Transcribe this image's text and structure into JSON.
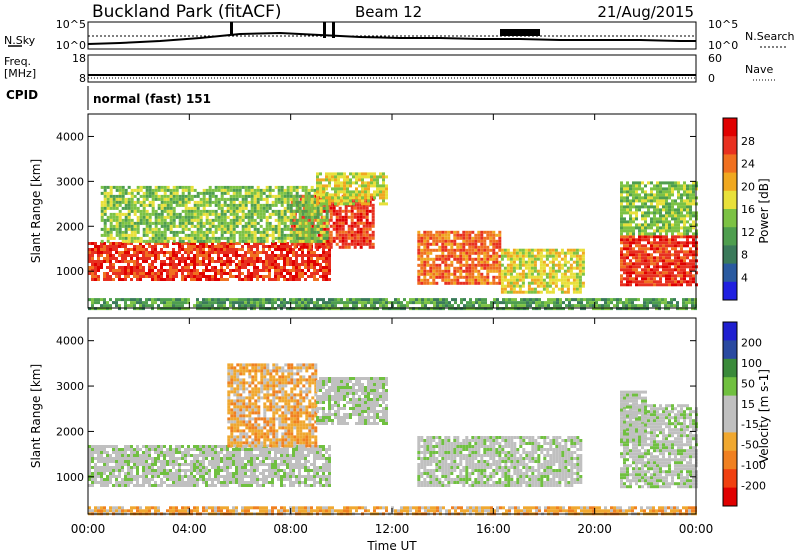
{
  "header": {
    "title": "Buckland Park (fitACF)",
    "beam": "Beam 12",
    "date": "21/Aug/2015"
  },
  "noise_panel": {
    "left_label": "N.Sky",
    "right_label": "N.Search",
    "left_ticks": [
      "10^5",
      "10^0"
    ],
    "right_ticks": [
      "10^5",
      "10^0"
    ]
  },
  "freq_panel": {
    "left_label_1": "Freq.",
    "left_label_2": "[MHz]",
    "right_label": "Nave",
    "left_ticks": [
      "18",
      "8"
    ],
    "right_ticks": [
      "60",
      "0"
    ]
  },
  "cpid_panel": {
    "label": "CPID",
    "text": "normal (fast) 151"
  },
  "x_axis": {
    "label": "Time UT",
    "ticks": [
      "00:00",
      "04:00",
      "08:00",
      "12:00",
      "16:00",
      "20:00",
      "00:00"
    ]
  },
  "colors": {
    "power": [
      "#2020e0",
      "#2a5aa0",
      "#3a7a5a",
      "#4e9e4e",
      "#7cc244",
      "#e8e03a",
      "#f0a820",
      "#f07020",
      "#e83020",
      "#e00000"
    ],
    "velocity": [
      "#e00000",
      "#f04010",
      "#f08020",
      "#f0a830",
      "#c0c0c0",
      "#c0c0c0",
      "#70c040",
      "#3a8a3a",
      "#2a4aa0",
      "#2020d0"
    ]
  },
  "chart_data": [
    {
      "type": "heatmap",
      "title": "",
      "xlabel": "Time UT",
      "ylabel": "Slant Range [km]",
      "xlim": [
        "00:00",
        "24:00"
      ],
      "ylim": [
        180,
        4500
      ],
      "y_ticks": [
        1000,
        2000,
        3000,
        4000
      ],
      "colorbar": {
        "label": "Power [dB]",
        "ticks": [
          4,
          8,
          12,
          16,
          20,
          24,
          28
        ]
      },
      "echo_regions": [
        {
          "t0": 0.0,
          "t1": 9.5,
          "r0": 800,
          "r1": 1650,
          "value_dB": 28
        },
        {
          "t0": 8.0,
          "t1": 11.3,
          "r0": 1500,
          "r1": 2700,
          "value_dB": 26
        },
        {
          "t0": 0.5,
          "t1": 9.5,
          "r0": 1650,
          "r1": 2900,
          "value_dB": 14
        },
        {
          "t0": 9.0,
          "t1": 11.8,
          "r0": 2500,
          "r1": 3200,
          "value_dB": 16
        },
        {
          "t0": 13.0,
          "t1": 16.2,
          "r0": 700,
          "r1": 1900,
          "value_dB": 24
        },
        {
          "t0": 16.3,
          "t1": 19.5,
          "r0": 500,
          "r1": 1500,
          "value_dB": 16
        },
        {
          "t0": 21.0,
          "t1": 24.0,
          "r0": 700,
          "r1": 1800,
          "value_dB": 28
        },
        {
          "t0": 21.0,
          "t1": 24.0,
          "r0": 1800,
          "r1": 3000,
          "value_dB": 14
        },
        {
          "t0": 0.0,
          "t1": 24.0,
          "r0": 180,
          "r1": 400,
          "value_dB": 10
        }
      ]
    },
    {
      "type": "heatmap",
      "title": "",
      "xlabel": "Time UT",
      "ylabel": "Slant Range [km]",
      "xlim": [
        "00:00",
        "24:00"
      ],
      "ylim": [
        180,
        4500
      ],
      "y_ticks": [
        1000,
        2000,
        3000,
        4000
      ],
      "colorbar": {
        "label": "Velocity [m s-1]",
        "ticks": [
          -200,
          -100,
          -50,
          -15,
          15,
          50,
          100,
          200
        ]
      },
      "echo_regions": [
        {
          "t0": 0.0,
          "t1": 9.5,
          "r0": 800,
          "r1": 1700,
          "value_ms": 0
        },
        {
          "t0": 5.5,
          "t1": 9.0,
          "r0": 1700,
          "r1": 3500,
          "value_ms": -60
        },
        {
          "t0": 9.0,
          "t1": 11.8,
          "r0": 2200,
          "r1": 3200,
          "value_ms": 0
        },
        {
          "t0": 13.0,
          "t1": 19.5,
          "r0": 800,
          "r1": 1900,
          "value_ms": 0
        },
        {
          "t0": 21.0,
          "t1": 24.0,
          "r0": 800,
          "r1": 2600,
          "value_ms": 0
        },
        {
          "t0": 21.0,
          "t1": 22.0,
          "r0": 1800,
          "r1": 2900,
          "value_ms": 40
        },
        {
          "t0": 0.0,
          "t1": 24.0,
          "r0": 180,
          "r1": 350,
          "value_ms": -60
        }
      ]
    }
  ]
}
